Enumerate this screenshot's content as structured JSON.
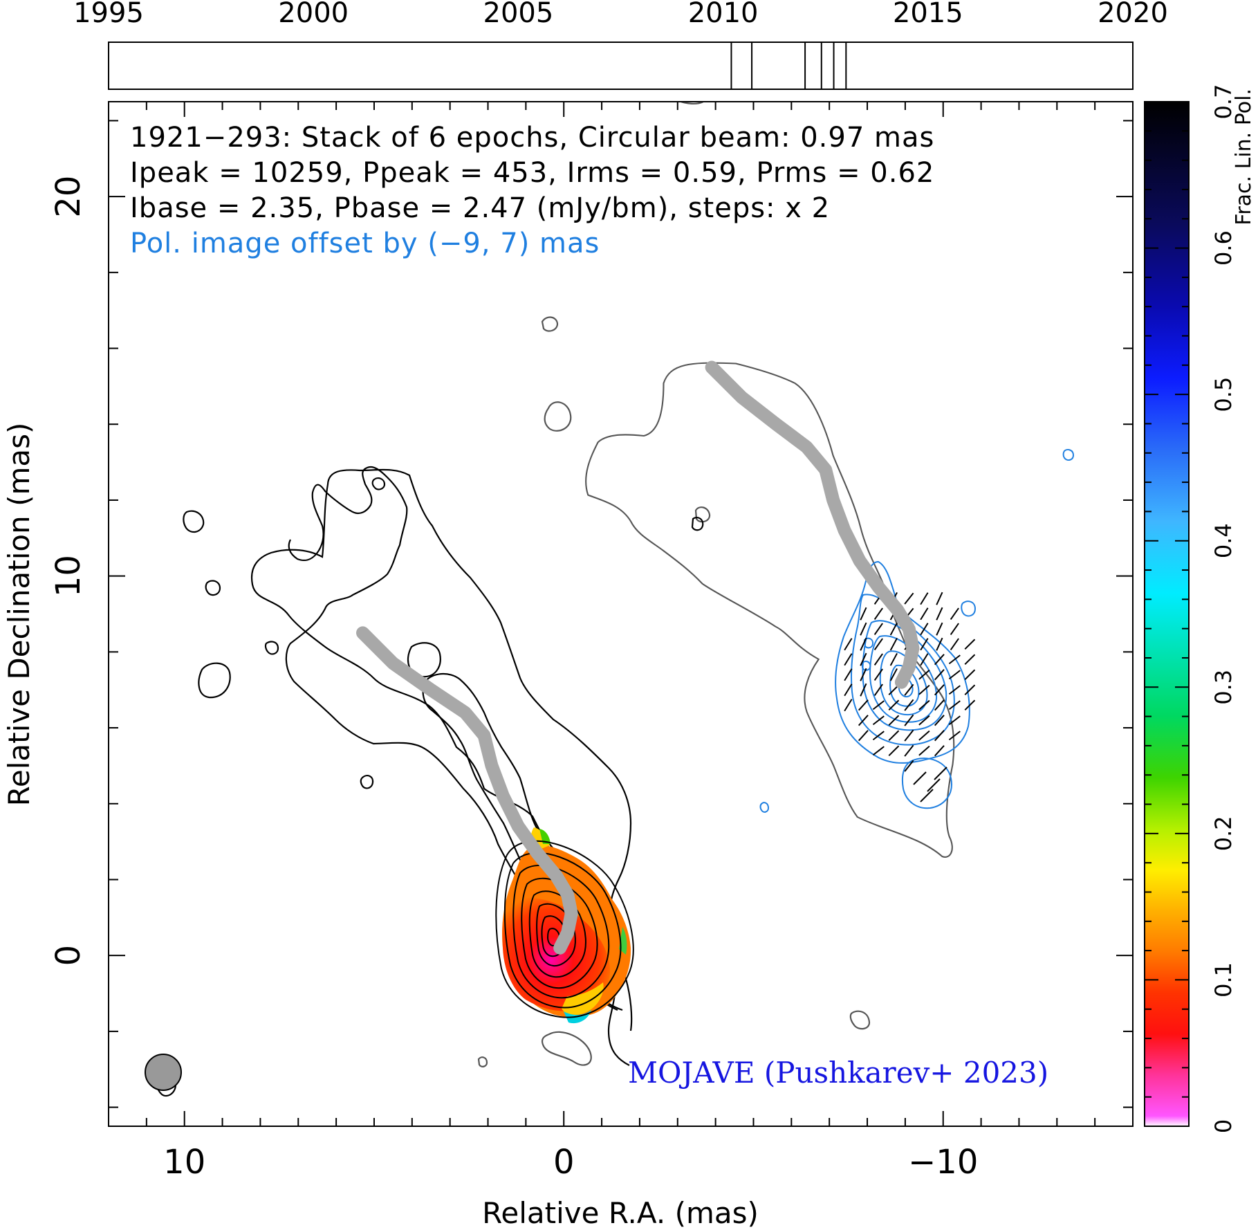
{
  "chart_data": {
    "type": "contour-map",
    "source": "1921−293",
    "xlabel": "Relative R.A. (mas)",
    "ylabel": "Relative Declination (mas)",
    "colorbar_label": "Frac. Lin. Pol.",
    "xlim": [
      12,
      -15
    ],
    "ylim": [
      -4.5,
      22.5
    ],
    "x_ticks": [
      10,
      0,
      -10
    ],
    "x_tick_labels": [
      "10",
      "0",
      "−10"
    ],
    "y_ticks": [
      20,
      10,
      0
    ],
    "y_tick_labels": [
      "20",
      "10",
      "0"
    ],
    "colorbar_range": [
      0,
      0.7
    ],
    "colorbar_ticks": [
      0,
      0.1,
      0.2,
      0.3,
      0.4,
      0.5,
      0.6,
      0.7
    ],
    "colorbar_tick_labels": [
      "0",
      "0.1",
      "0.2",
      "0.3",
      "0.4",
      "0.5",
      "0.6",
      "0.7"
    ],
    "timeline": {
      "range": [
        1995,
        2020
      ],
      "ticks": [
        1995,
        2000,
        2005,
        2010,
        2015,
        2020
      ],
      "tick_labels": [
        "1995",
        "2000",
        "2005",
        "2010",
        "2015",
        "2020"
      ],
      "epochs": [
        2010.2,
        2010.7,
        2012.0,
        2012.4,
        2012.7,
        2013.0
      ]
    },
    "info_lines": [
      "1921−293: Stack of 6 epochs, Circular beam: 0.97 mas",
      "Ipeak = 10259, Ppeak = 453, Irms = 0.59, Prms = 0.62",
      "Ibase = 2.35, Pbase = 2.47 (mJy/bm), steps: x 2"
    ],
    "pol_offset_note": "Pol. image offset by (−9, 7) mas",
    "credit": "MOJAVE (Pushkarev+ 2023)",
    "beam_mas": 0.97,
    "pol_offset_mas": [
      -9,
      7
    ],
    "ridge_line": {
      "x": [
        5.3,
        4.5,
        3.5,
        2.6,
        2.1,
        1.9,
        1.6,
        1.2,
        0.7,
        0.2,
        -0.1,
        -0.2,
        -0.1,
        0.1
      ],
      "y": [
        8.5,
        7.7,
        7.0,
        6.4,
        5.8,
        5.0,
        4.2,
        3.4,
        2.7,
        2.1,
        1.6,
        1.1,
        0.6,
        0.2
      ]
    },
    "pol_ridge_line": {
      "x": [
        -3.9,
        -4.7,
        -5.6,
        -6.4,
        -6.9,
        -7.1,
        -7.4,
        -7.8,
        -8.3,
        -8.8,
        -9.1,
        -9.2,
        -9.1,
        -8.9
      ],
      "y": [
        15.5,
        14.7,
        14.0,
        13.4,
        12.8,
        12.0,
        11.2,
        10.4,
        9.7,
        9.1,
        8.6,
        8.1,
        7.6,
        7.2
      ]
    },
    "colors": {
      "total_intensity_contours": "#000000",
      "outer_contour": "#555555",
      "pol_contours": "#1f7fe0",
      "ridge_line": "#a8a8a8",
      "beam": "#999999",
      "credit": "#1515e0",
      "offset_note": "#1f7fe0"
    }
  }
}
